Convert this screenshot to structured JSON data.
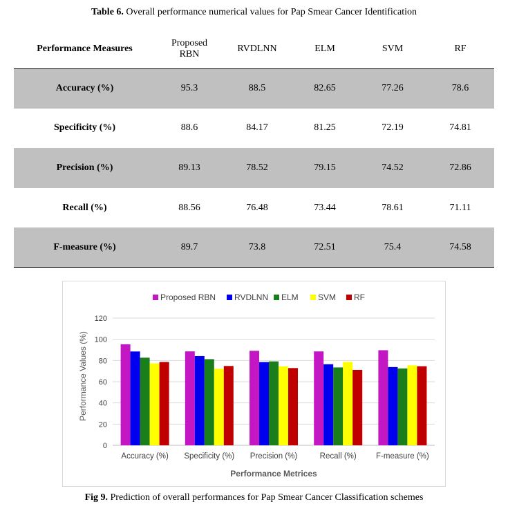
{
  "table_caption": {
    "label": "Table 6.",
    "text": " Overall performance numerical values for Pap Smear Cancer Identification"
  },
  "table": {
    "header_first": "Performance Measures",
    "columns": [
      "Proposed RBN",
      "RVDLNN",
      "ELM",
      "SVM",
      "RF"
    ],
    "rows": [
      {
        "label": "Accuracy (%)",
        "values": [
          "95.3",
          "88.5",
          "82.65",
          "77.26",
          "78.6"
        ]
      },
      {
        "label": "Specificity (%)",
        "values": [
          "88.6",
          "84.17",
          "81.25",
          "72.19",
          "74.81"
        ]
      },
      {
        "label": "Precision (%)",
        "values": [
          "89.13",
          "78.52",
          "79.15",
          "74.52",
          "72.86"
        ]
      },
      {
        "label": "Recall (%)",
        "values": [
          "88.56",
          "76.48",
          "73.44",
          "78.61",
          "71.11"
        ]
      },
      {
        "label": "F-measure (%)",
        "values": [
          "89.7",
          "73.8",
          "72.51",
          "75.4",
          "74.58"
        ]
      }
    ]
  },
  "chart_data": {
    "type": "bar",
    "categories": [
      "Accuracy (%)",
      "Specificity (%)",
      "Precision (%)",
      "Recall (%)",
      "F-measure (%)"
    ],
    "series": [
      {
        "name": "Proposed RBN",
        "color": "#c417c4",
        "values": [
          95.3,
          88.6,
          89.13,
          88.56,
          89.7
        ]
      },
      {
        "name": "RVDLNN",
        "color": "#0000ee",
        "values": [
          88.5,
          84.17,
          78.52,
          76.48,
          73.8
        ]
      },
      {
        "name": "ELM",
        "color": "#1a7f1a",
        "values": [
          82.65,
          81.25,
          79.15,
          73.44,
          72.51
        ]
      },
      {
        "name": "SVM",
        "color": "#ffff00",
        "values": [
          77.26,
          72.19,
          74.52,
          78.61,
          75.4
        ]
      },
      {
        "name": "RF",
        "color": "#c00000",
        "values": [
          78.6,
          74.81,
          72.86,
          71.11,
          74.58
        ]
      }
    ],
    "xlabel": "Performance Metrices",
    "ylabel": "Performance Values (%)",
    "ylim": [
      0,
      120
    ],
    "yticks": [
      0,
      20,
      40,
      60,
      80,
      100,
      120
    ],
    "grid": true,
    "legend_position": "top"
  },
  "fig_caption": {
    "label": "Fig 9.",
    "text": " Prediction of overall performances for Pap Smear Cancer Classification schemes"
  }
}
